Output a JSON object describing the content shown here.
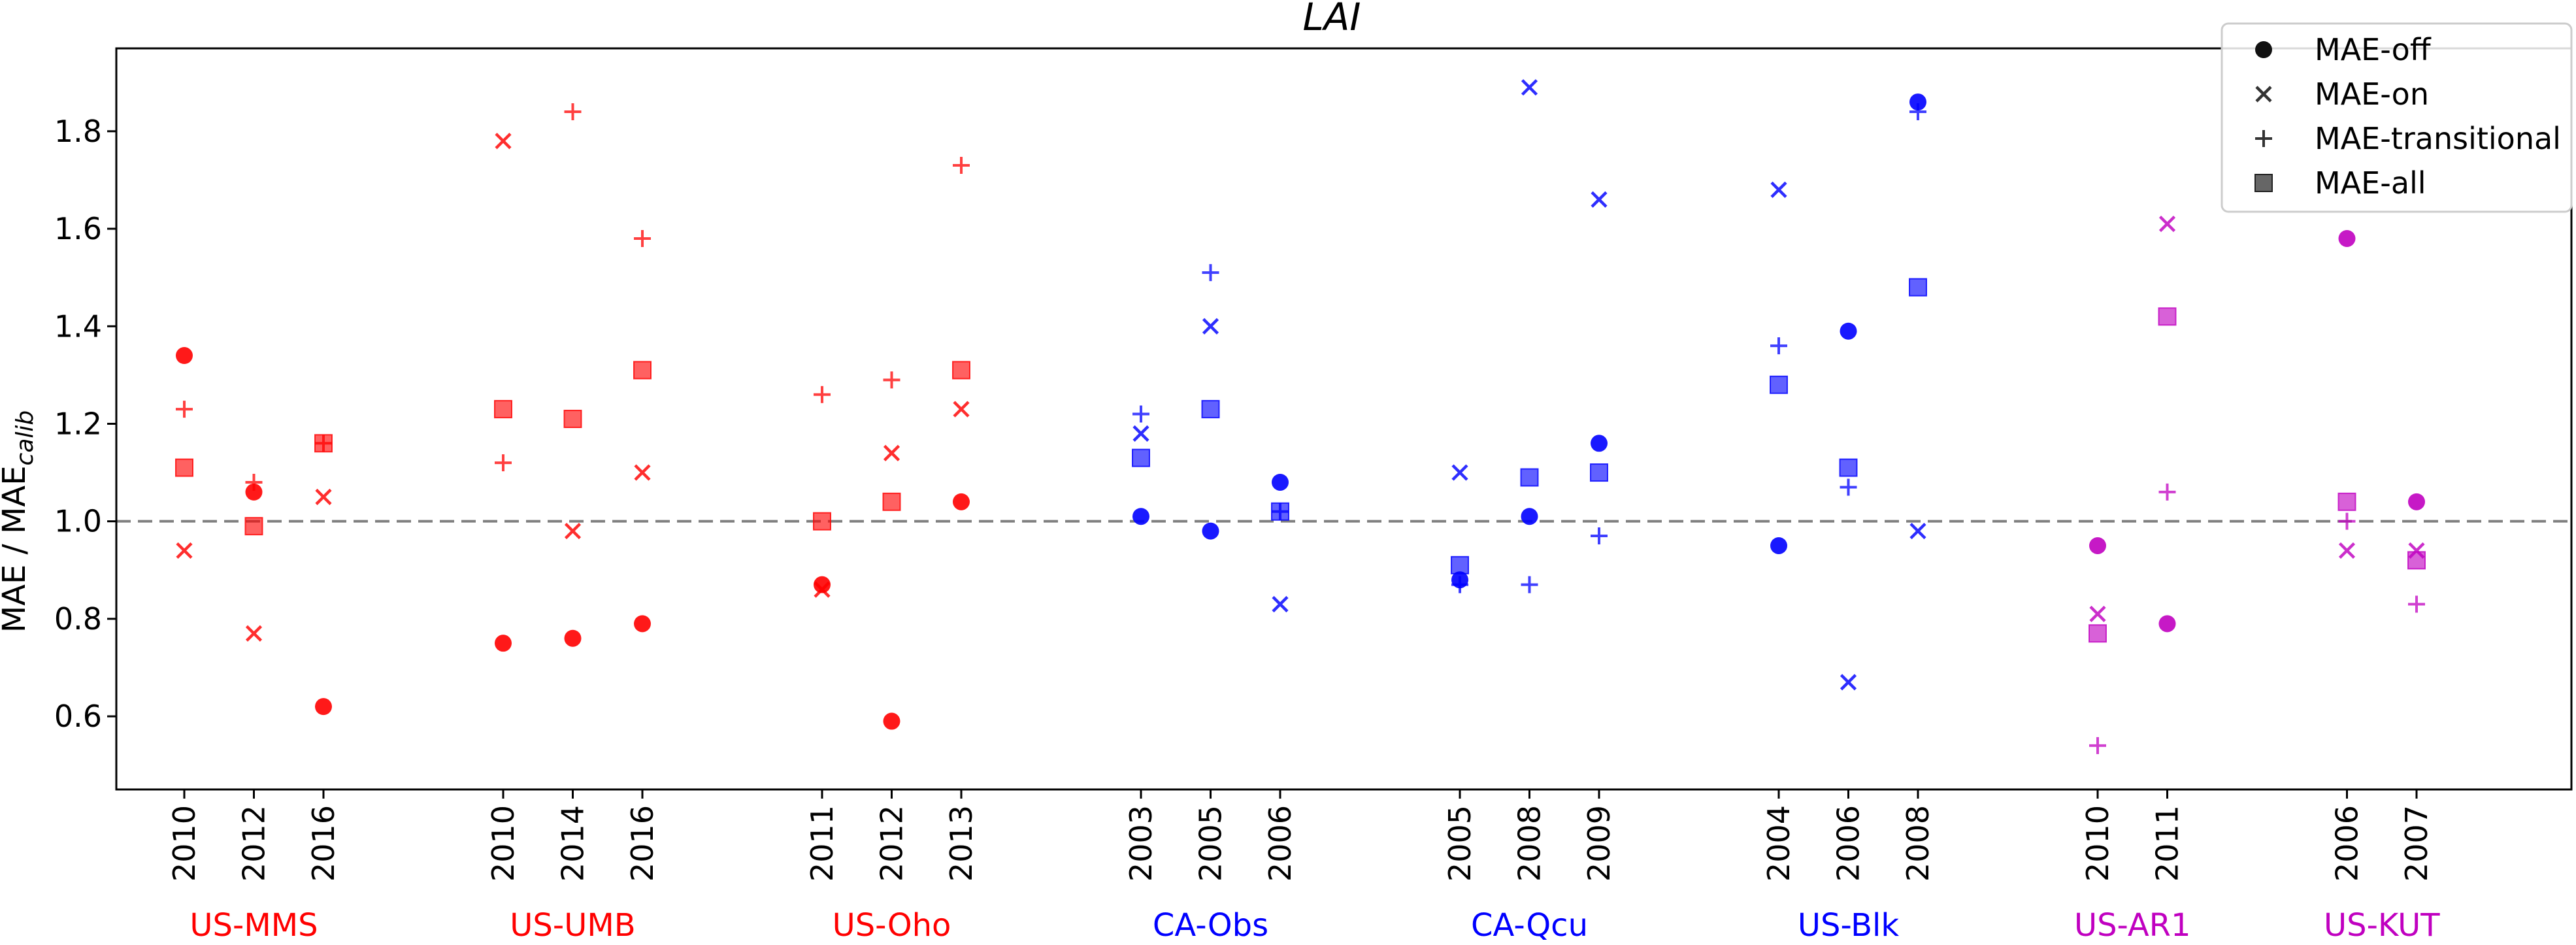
{
  "chart_data": {
    "type": "scatter",
    "title": "LAI",
    "ylabel_main": "MAE / MAE",
    "ylabel_sub": "calib",
    "ylim": [
      0.45,
      1.97
    ],
    "yticks": [
      0.6,
      0.8,
      1.0,
      1.2,
      1.4,
      1.6,
      1.8
    ],
    "reference_line": 1.0,
    "colors": {
      "red": "#ff0000",
      "blue": "#0000ff",
      "magenta": "#c000c0",
      "reference": "#808080"
    },
    "legend": {
      "position": "top-right",
      "entries": [
        {
          "label": "MAE-off",
          "marker": "circle"
        },
        {
          "label": "MAE-on",
          "marker": "x"
        },
        {
          "label": "MAE-transitional",
          "marker": "plus"
        },
        {
          "label": "MAE-all",
          "marker": "square"
        }
      ]
    },
    "sites": [
      {
        "name": "US-MMS",
        "color": "red",
        "years": [
          {
            "year": "2010",
            "off": 1.34,
            "on": 0.94,
            "trans": 1.23,
            "all": 1.11
          },
          {
            "year": "2012",
            "off": 1.06,
            "on": 0.77,
            "trans": 1.08,
            "all": 0.99
          },
          {
            "year": "2016",
            "off": 0.62,
            "on": 1.05,
            "trans": 1.16,
            "all": 1.16
          }
        ]
      },
      {
        "name": "US-UMB",
        "color": "red",
        "years": [
          {
            "year": "2010",
            "off": 0.75,
            "on": 1.78,
            "trans": 1.12,
            "all": 1.23
          },
          {
            "year": "2014",
            "off": 0.76,
            "on": 0.98,
            "trans": 1.84,
            "all": 1.21
          },
          {
            "year": "2016",
            "off": 0.79,
            "on": 1.1,
            "trans": 1.58,
            "all": 1.31
          }
        ]
      },
      {
        "name": "US-Oho",
        "color": "red",
        "years": [
          {
            "year": "2011",
            "off": 0.87,
            "on": 0.86,
            "trans": 1.26,
            "all": 1.0
          },
          {
            "year": "2012",
            "off": 0.59,
            "on": 1.14,
            "trans": 1.29,
            "all": 1.04
          },
          {
            "year": "2013",
            "off": 1.04,
            "on": 1.23,
            "trans": 1.73,
            "all": 1.31
          }
        ]
      },
      {
        "name": "CA-Obs",
        "color": "blue",
        "years": [
          {
            "year": "2003",
            "off": 1.01,
            "on": 1.18,
            "trans": 1.22,
            "all": 1.13
          },
          {
            "year": "2005",
            "off": 0.98,
            "on": 1.4,
            "trans": 1.51,
            "all": 1.23
          },
          {
            "year": "2006",
            "off": 1.08,
            "on": 0.83,
            "trans": 1.02,
            "all": 1.02
          }
        ]
      },
      {
        "name": "CA-Qcu",
        "color": "blue",
        "years": [
          {
            "year": "2005",
            "off": 0.88,
            "on": 1.1,
            "trans": 0.87,
            "all": 0.91
          },
          {
            "year": "2008",
            "off": 1.01,
            "on": 1.89,
            "trans": 0.87,
            "all": 1.09
          },
          {
            "year": "2009",
            "off": 1.16,
            "on": 1.66,
            "trans": 0.97,
            "all": 1.1
          }
        ]
      },
      {
        "name": "US-Blk",
        "color": "blue",
        "years": [
          {
            "year": "2004",
            "off": 0.95,
            "on": 1.68,
            "trans": 1.36,
            "all": 1.28
          },
          {
            "year": "2006",
            "off": 1.39,
            "on": 0.67,
            "trans": 1.07,
            "all": 1.11
          },
          {
            "year": "2008",
            "off": 1.86,
            "on": 0.98,
            "trans": 1.84,
            "all": 1.48
          }
        ]
      },
      {
        "name": "US-AR1",
        "color": "magenta",
        "years": [
          {
            "year": "2010",
            "off": 0.95,
            "on": 0.81,
            "trans": 0.54,
            "all": 0.77
          },
          {
            "year": "2011",
            "off": 0.79,
            "on": 1.61,
            "trans": 1.06,
            "all": 1.42
          }
        ]
      },
      {
        "name": "US-KUT",
        "color": "magenta",
        "years": [
          {
            "year": "2006",
            "off": 1.58,
            "on": 0.94,
            "trans": 1.0,
            "all": 1.04
          },
          {
            "year": "2007",
            "off": 1.04,
            "on": 0.94,
            "trans": 0.83,
            "all": 0.92
          }
        ]
      }
    ]
  }
}
